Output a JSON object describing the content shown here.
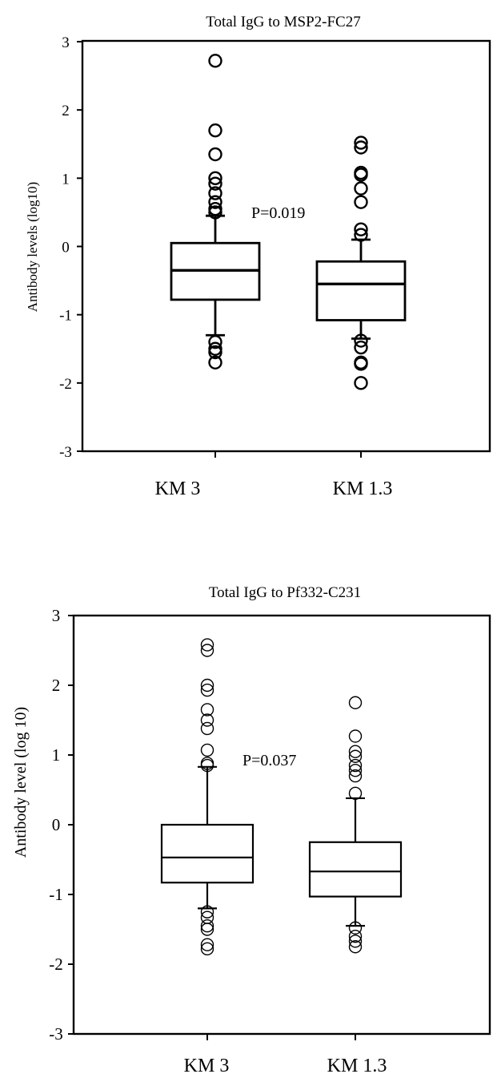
{
  "chart_data": [
    {
      "type": "box",
      "title": "Total IgG to MSP2-FC27",
      "ylabel": "Antibody levels (log10)",
      "ylim": [
        -3,
        3
      ],
      "yticks": [
        "-3",
        "-2",
        "-1",
        "0",
        "1",
        "2",
        "3"
      ],
      "categories": [
        "KM 3",
        "KM 1.3"
      ],
      "annotation": "P=0.019",
      "series": [
        {
          "category": "KM 3",
          "whisker_low": -1.3,
          "q1": -0.78,
          "median": -0.35,
          "q3": 0.05,
          "whisker_high": 0.45,
          "outliers": [
            2.72,
            1.7,
            1.35,
            1.0,
            0.92,
            0.78,
            0.65,
            0.55,
            0.5,
            -1.4,
            -1.5,
            -1.55,
            -1.7
          ]
        },
        {
          "category": "KM 1.3",
          "whisker_low": -1.35,
          "q1": -1.08,
          "median": -0.55,
          "q3": -0.22,
          "whisker_high": 0.1,
          "outliers": [
            1.52,
            1.45,
            1.08,
            1.05,
            0.85,
            0.65,
            0.25,
            0.17,
            -1.38,
            -1.48,
            -1.7,
            -1.72,
            -2.0
          ]
        }
      ]
    },
    {
      "type": "box",
      "title": "Total IgG to Pf332-C231",
      "ylabel": "Antibody level (log 10)",
      "ylim": [
        -3,
        3
      ],
      "yticks": [
        "-3",
        "-2",
        "-1",
        "0",
        "1",
        "2",
        "3"
      ],
      "categories": [
        "KM 3",
        "KM 1.3"
      ],
      "annotation": "P=0.037",
      "series": [
        {
          "category": "KM 3",
          "whisker_low": -1.2,
          "q1": -0.83,
          "median": -0.47,
          "q3": 0.0,
          "whisker_high": 0.83,
          "outliers": [
            2.58,
            2.5,
            2.0,
            1.93,
            1.65,
            1.5,
            1.38,
            1.07,
            0.88,
            0.85,
            -1.25,
            -1.33,
            -1.45,
            -1.5,
            -1.72,
            -1.78
          ]
        },
        {
          "category": "KM 1.3",
          "whisker_low": -1.45,
          "q1": -1.03,
          "median": -0.67,
          "q3": -0.25,
          "whisker_high": 0.38,
          "outliers": [
            1.75,
            1.27,
            1.05,
            0.98,
            0.85,
            0.78,
            0.7,
            0.45,
            -1.48,
            -1.6,
            -1.67,
            -1.75
          ]
        }
      ]
    }
  ]
}
